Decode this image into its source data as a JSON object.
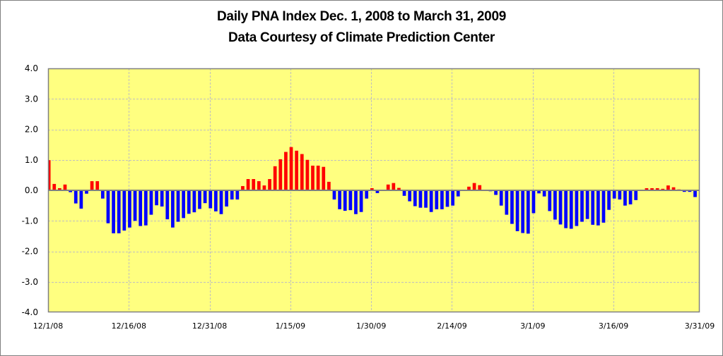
{
  "chart_data": {
    "type": "bar",
    "title": "Daily PNA Index Dec. 1, 2008 to March 31, 2009",
    "subtitle": "Data Courtesy of Climate Prediction Center",
    "xlabel": "",
    "ylabel": "",
    "ylim": [
      -4.0,
      4.0
    ],
    "yticks": [
      "4.0",
      "3.0",
      "2.0",
      "1.0",
      "0.0",
      "-1.0",
      "-2.0",
      "-3.0",
      "-4.0"
    ],
    "ytick_values": [
      4,
      3,
      2,
      1,
      0,
      -1,
      -2,
      -3,
      -4
    ],
    "xtick_labels": [
      "12/1/08",
      "12/16/08",
      "12/31/08",
      "1/15/09",
      "1/30/09",
      "2/14/09",
      "3/1/09",
      "3/16/09",
      "3/31/09"
    ],
    "xtick_day_index": [
      0,
      15,
      30,
      45,
      60,
      75,
      90,
      105,
      120
    ],
    "x_start": "12/1/08",
    "x_end": "3/31/09",
    "grid": true,
    "legend": "none",
    "colors": {
      "positive": "#ff0000",
      "negative": "#0000ff",
      "plot_background": "#ffff80",
      "gridline": "#bfbfbf",
      "axis": "#808080"
    },
    "values": [
      0.99,
      0.21,
      0.07,
      0.19,
      -0.06,
      -0.43,
      -0.6,
      -0.11,
      0.3,
      0.3,
      -0.27,
      -1.08,
      -1.41,
      -1.41,
      -1.32,
      -1.22,
      -1.0,
      -1.17,
      -1.15,
      -0.8,
      -0.49,
      -0.53,
      -0.95,
      -1.22,
      -1.03,
      -0.91,
      -0.77,
      -0.72,
      -0.61,
      -0.42,
      -0.59,
      -0.69,
      -0.78,
      -0.53,
      -0.3,
      -0.3,
      0.14,
      0.37,
      0.37,
      0.3,
      0.16,
      0.37,
      0.79,
      1.02,
      1.26,
      1.42,
      1.3,
      1.19,
      1.0,
      0.81,
      0.81,
      0.77,
      0.28,
      -0.3,
      -0.62,
      -0.67,
      -0.65,
      -0.78,
      -0.71,
      -0.27,
      0.07,
      -0.09,
      0.0,
      0.19,
      0.24,
      0.08,
      -0.18,
      -0.36,
      -0.52,
      -0.57,
      -0.57,
      -0.71,
      -0.62,
      -0.62,
      -0.54,
      -0.5,
      -0.2,
      0.0,
      0.12,
      0.24,
      0.17,
      0.0,
      -0.03,
      -0.15,
      -0.5,
      -0.8,
      -1.1,
      -1.34,
      -1.4,
      -1.42,
      -0.75,
      -0.1,
      -0.2,
      -0.68,
      -0.96,
      -1.12,
      -1.24,
      -1.26,
      -1.17,
      -1.03,
      -0.94,
      -1.13,
      -1.15,
      -1.06,
      -0.64,
      -0.27,
      -0.3,
      -0.5,
      -0.46,
      -0.32,
      0.0,
      0.07,
      0.07,
      0.07,
      0.05,
      0.16,
      0.1,
      0.03,
      -0.05,
      -0.05,
      -0.22
    ]
  }
}
